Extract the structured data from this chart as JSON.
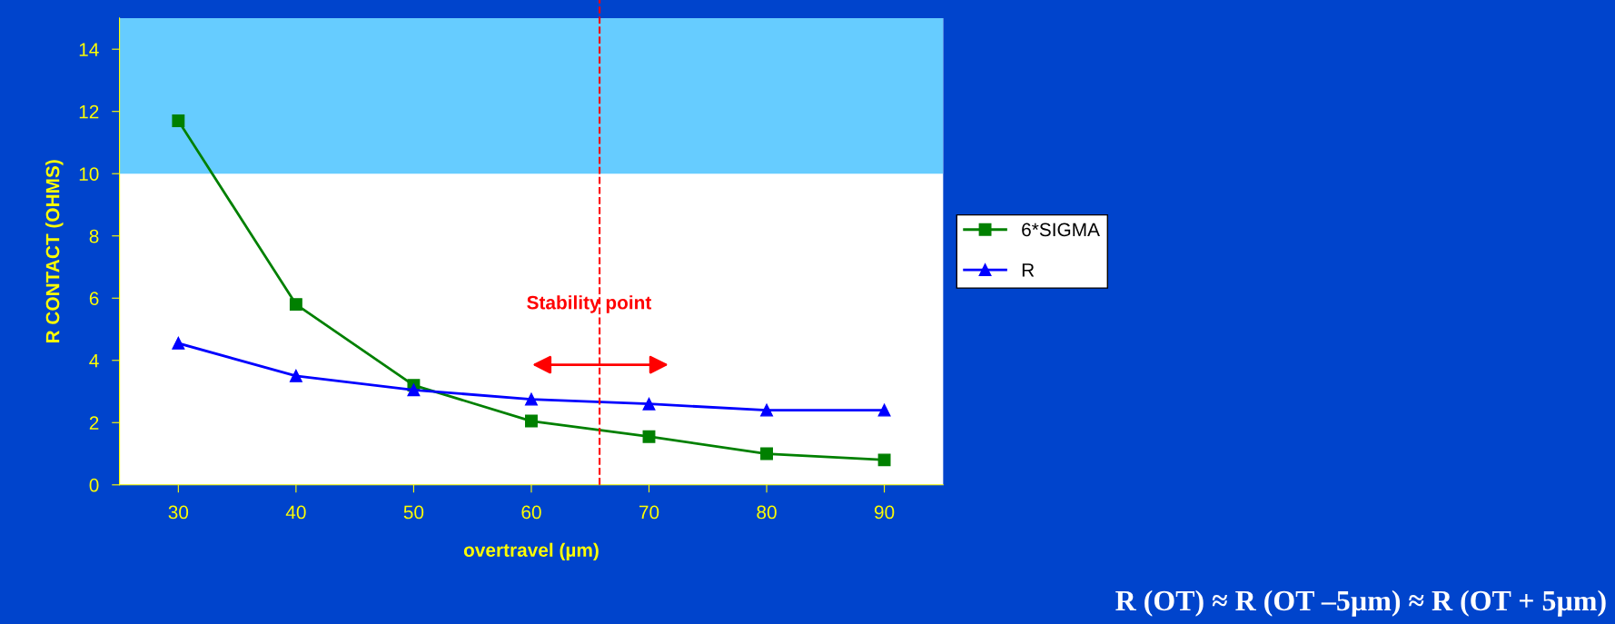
{
  "chart_data": {
    "type": "line",
    "xlabel": "overtravel (µm)",
    "ylabel": "R CONTACT (OHMS)",
    "x": [
      30,
      40,
      50,
      60,
      70,
      80,
      90
    ],
    "series": [
      {
        "name": "6*SIGMA",
        "color": "#008000",
        "marker": "square",
        "values": [
          11.7,
          5.8,
          3.2,
          2.05,
          1.55,
          1.0,
          0.8
        ]
      },
      {
        "name": "R",
        "color": "#0000ff",
        "marker": "triangle",
        "values": [
          4.55,
          3.5,
          3.05,
          2.75,
          2.6,
          2.4,
          2.4
        ]
      }
    ],
    "xlim": [
      25,
      95
    ],
    "xticks": [
      30,
      40,
      50,
      60,
      70,
      80,
      90
    ],
    "ylim": [
      0,
      15
    ],
    "yticks": [
      0,
      2,
      4,
      6,
      8,
      10,
      12,
      14
    ],
    "bands": [
      {
        "axis": "y",
        "from": 10,
        "to": 15,
        "color": "#66ccff"
      }
    ],
    "ref_lines": [
      {
        "axis": "x",
        "value": 65.8,
        "color": "#ff0000",
        "line_style": "dashed"
      }
    ],
    "annotations": [
      "Stability point",
      "R (OT) ≈ R (OT –5µm) ≈ R (OT + 5µm)"
    ],
    "grid": false,
    "legend": "right",
    "line_style": "solid"
  }
}
